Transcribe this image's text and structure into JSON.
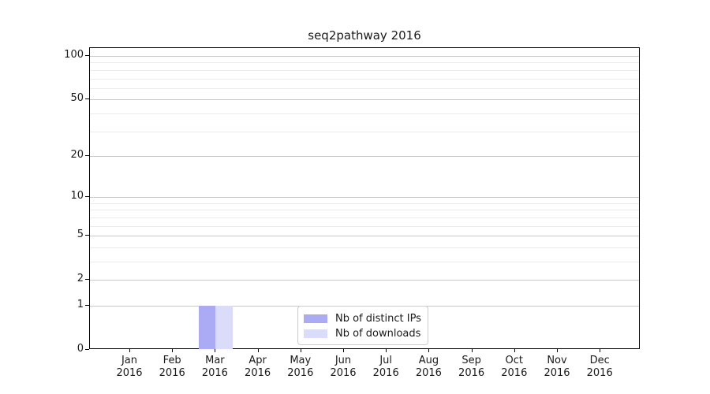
{
  "chart_data": {
    "type": "bar",
    "title": "seq2pathway 2016",
    "categories": [
      "Jan 2016",
      "Feb 2016",
      "Mar 2016",
      "Apr 2016",
      "May 2016",
      "Jun 2016",
      "Jul 2016",
      "Aug 2016",
      "Sep 2016",
      "Oct 2016",
      "Nov 2016",
      "Dec 2016"
    ],
    "x_tick_months": [
      "Jan",
      "Feb",
      "Mar",
      "Apr",
      "May",
      "Jun",
      "Jul",
      "Aug",
      "Sep",
      "Oct",
      "Nov",
      "Dec"
    ],
    "x_tick_year": "2016",
    "series": [
      {
        "name": "Nb of distinct IPs",
        "color": "#aaaaf5",
        "values": [
          0,
          0,
          1,
          0,
          0,
          0,
          0,
          0,
          0,
          0,
          0,
          0
        ]
      },
      {
        "name": "Nb of downloads",
        "color": "#dbdbfa",
        "values": [
          0,
          0,
          1,
          0,
          0,
          0,
          0,
          0,
          0,
          0,
          0,
          0
        ]
      }
    ],
    "xlabel": "",
    "ylabel": "",
    "y_scale": "log1p",
    "ylim": [
      0,
      100
    ],
    "y_major_ticks": [
      0,
      1,
      2,
      5,
      10,
      20,
      50,
      100
    ],
    "y_minor_gridlines": [
      3,
      4,
      6,
      7,
      8,
      9,
      30,
      40,
      60,
      70,
      80,
      90
    ],
    "grid": "horizontal",
    "legend_position": "lower center inside"
  },
  "colors": {
    "background": "#ffffff",
    "axis": "#000000",
    "text": "#1a1a1a",
    "grid_major": "#c9c9c9",
    "grid_minor": "#ebebeb",
    "legend_border": "#cccccc"
  }
}
